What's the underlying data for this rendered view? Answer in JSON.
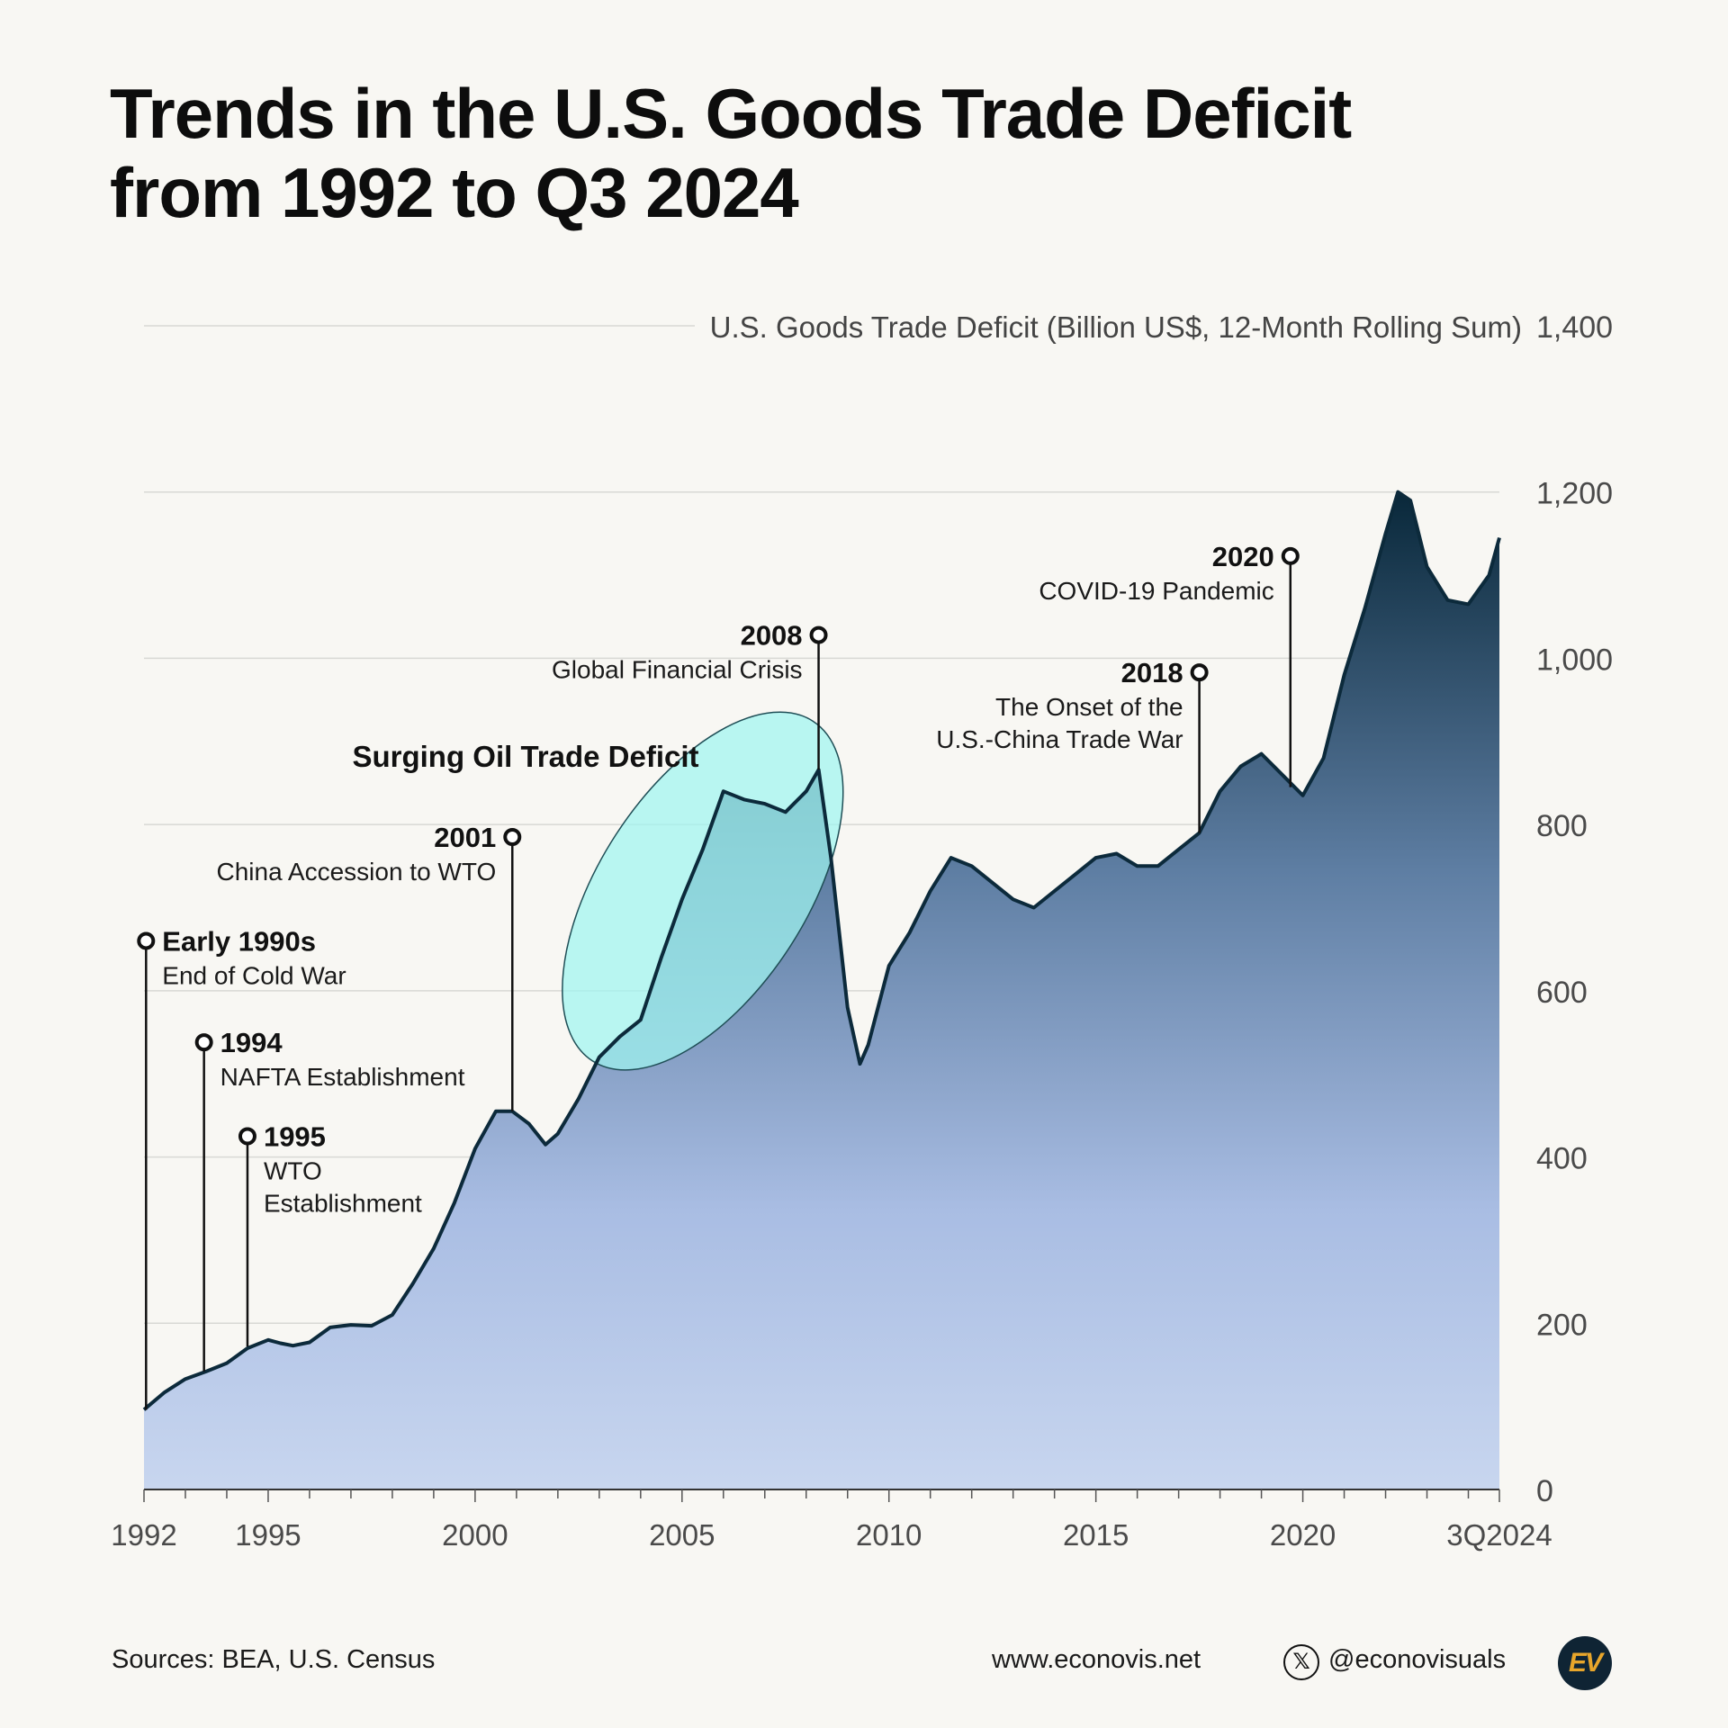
{
  "title": {
    "line1": "Trends in the U.S. Goods Trade Deficit",
    "line2": "from 1992 to Q3 2024"
  },
  "colors": {
    "line": "#0c2a3b",
    "fill_top": "#09283a",
    "fill_mid": "#5e7ea3",
    "fill_low": "#a9bde3",
    "fill_bottom": "#c8d6ef",
    "highlight": "#9ff5f0",
    "grid": "#d8d8d4",
    "axis_text": "#4a4a4a"
  },
  "chart_data": {
    "type": "area",
    "title": "Trends in the U.S. Goods Trade Deficit from 1992 to Q3 2024",
    "ylabel": "U.S. Goods Trade Deficit (Billion US$, 12-Month Rolling Sum)",
    "xlabel": "",
    "xlim": [
      1992,
      2024.75
    ],
    "ylim": [
      0,
      1400
    ],
    "grid": true,
    "yticks": [
      0,
      200,
      400,
      600,
      800,
      1000,
      1200,
      1400
    ],
    "ytick_labels": [
      "0",
      "200",
      "400",
      "600",
      "800",
      "1,000",
      "1,200",
      "1,400"
    ],
    "xticks": [
      1992,
      1995,
      2000,
      2005,
      2010,
      2015,
      2020,
      2024.75
    ],
    "xtick_labels": [
      "1992",
      "1995",
      "2000",
      "2005",
      "2010",
      "2015",
      "2020",
      "3Q2024"
    ],
    "x": [
      1992.0,
      1992.5,
      1993.0,
      1993.5,
      1994.0,
      1994.5,
      1995.0,
      1995.3,
      1995.6,
      1996.0,
      1996.5,
      1997.0,
      1997.5,
      1998.0,
      1998.5,
      1999.0,
      1999.5,
      2000.0,
      2000.5,
      2000.9,
      2001.3,
      2001.7,
      2002.0,
      2002.5,
      2003.0,
      2003.5,
      2004.0,
      2004.5,
      2005.0,
      2005.5,
      2006.0,
      2006.5,
      2007.0,
      2007.5,
      2008.0,
      2008.3,
      2008.6,
      2009.0,
      2009.3,
      2009.5,
      2010.0,
      2010.5,
      2011.0,
      2011.5,
      2012.0,
      2012.5,
      2013.0,
      2013.5,
      2014.0,
      2014.5,
      2015.0,
      2015.5,
      2016.0,
      2016.5,
      2017.0,
      2017.5,
      2018.0,
      2018.5,
      2019.0,
      2019.5,
      2020.0,
      2020.5,
      2021.0,
      2021.5,
      2022.0,
      2022.3,
      2022.6,
      2023.0,
      2023.5,
      2024.0,
      2024.5,
      2024.75
    ],
    "series": [
      {
        "name": "U.S. Goods Trade Deficit",
        "values": [
          96,
          117,
          133,
          142,
          152,
          170,
          180,
          176,
          173,
          177,
          195,
          198,
          197,
          210,
          248,
          290,
          345,
          410,
          455,
          455,
          440,
          415,
          428,
          470,
          520,
          545,
          565,
          640,
          710,
          770,
          840,
          830,
          825,
          815,
          840,
          866,
          760,
          580,
          512,
          535,
          630,
          670,
          720,
          760,
          750,
          730,
          710,
          700,
          720,
          740,
          760,
          765,
          750,
          750,
          770,
          790,
          840,
          870,
          885,
          860,
          835,
          880,
          980,
          1060,
          1150,
          1200,
          1190,
          1110,
          1070,
          1065,
          1100,
          1145
        ]
      }
    ],
    "events": [
      {
        "x": 1992.05,
        "value": 96,
        "marker_y": 660,
        "year": "Early 1990s",
        "label_lines": [
          "End of Cold War"
        ],
        "side": "right"
      },
      {
        "x": 1993.45,
        "value": 142,
        "marker_y": 538,
        "year": "1994",
        "label_lines": [
          "NAFTA Establishment"
        ],
        "side": "right"
      },
      {
        "x": 1994.5,
        "value": 172,
        "marker_y": 425,
        "year": "1995",
        "label_lines": [
          "WTO",
          "Establishment"
        ],
        "side": "right"
      },
      {
        "x": 2000.9,
        "value": 455,
        "marker_y": 785,
        "year": "2001",
        "label_lines": [
          "China Accession to WTO"
        ],
        "side": "left"
      },
      {
        "x": 2008.3,
        "value": 866,
        "marker_y": 1028,
        "year": "2008",
        "label_lines": [
          "Global Financial Crisis"
        ],
        "side": "left"
      },
      {
        "x": 2017.5,
        "value": 790,
        "marker_y": 983,
        "year": "2018",
        "label_lines": [
          "The Onset of the",
          "U.S.-China Trade War"
        ],
        "side": "left"
      },
      {
        "x": 2019.7,
        "value": 845,
        "marker_y": 1123,
        "year": "2020",
        "label_lines": [
          "COVID-19 Pandemic"
        ],
        "side": "left"
      }
    ],
    "highlight": {
      "label": "Surging Oil Trade Deficit",
      "x_center": 2005.5,
      "y_center": 720
    }
  },
  "footer": {
    "sources": "Sources: BEA, U.S. Census",
    "website": "www.econovis.net",
    "x_glyph": "𝕏",
    "handle": "@econovisuals",
    "logo": "EV"
  }
}
